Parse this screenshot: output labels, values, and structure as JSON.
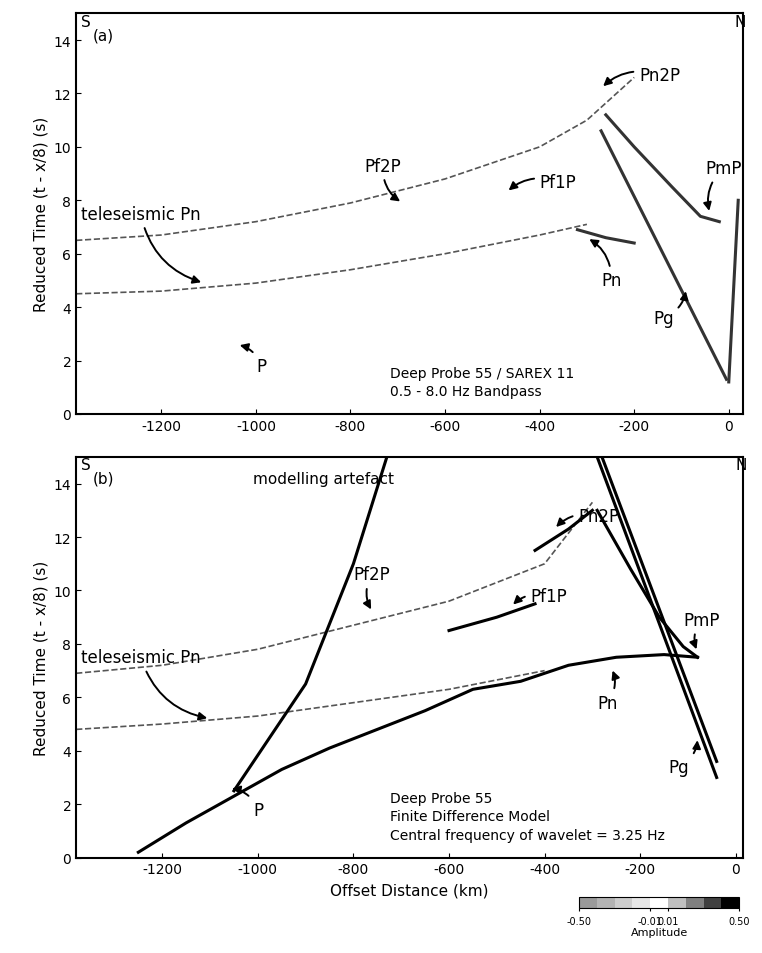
{
  "chart_data": [
    {
      "type": "line",
      "ylabel": "Reduced Time (t - x/8) (s)",
      "xlim": [
        -1380,
        30
      ],
      "ylim": [
        0,
        15
      ],
      "xticks": [
        -1200,
        -1000,
        -800,
        -600,
        -400,
        -200,
        0
      ],
      "yticks": [
        0,
        2,
        4,
        6,
        8,
        10,
        12,
        14
      ],
      "series": [
        {
          "color": "#555555",
          "line_style": "dashed",
          "x": [
            -1380,
            -1200,
            -1000,
            -800,
            -600,
            -400,
            -300
          ],
          "values": [
            4.5,
            4.6,
            4.9,
            5.4,
            6.0,
            6.7,
            7.1
          ]
        },
        {
          "color": "#555555",
          "line_style": "dashed",
          "x": [
            -1380,
            -1200,
            -1000,
            -800,
            -600,
            -400,
            -300,
            -200
          ],
          "values": [
            6.5,
            6.7,
            7.2,
            7.9,
            8.8,
            10.0,
            11.0,
            12.6
          ]
        },
        {
          "color": "#333333",
          "line_style": "solid",
          "x": [
            -5,
            -270
          ],
          "values": [
            1.3,
            10.6
          ]
        },
        {
          "color": "#333333",
          "line_style": "solid",
          "x": [
            0,
            20
          ],
          "values": [
            1.2,
            8.0
          ]
        },
        {
          "color": "#333333",
          "line_style": "solid",
          "x": [
            -20,
            -60,
            -120,
            -200,
            -260
          ],
          "values": [
            7.2,
            7.4,
            8.5,
            10.0,
            11.2
          ]
        },
        {
          "color": "#333333",
          "line_style": "solid",
          "x": [
            -320,
            -260,
            -200
          ],
          "values": [
            6.9,
            6.6,
            6.4
          ]
        }
      ],
      "annotations": [
        {
          "text": "(a)",
          "xy": [
            -1345,
            14.2
          ]
        },
        {
          "text": "S",
          "xy": [
            -1370,
            14.7
          ]
        },
        {
          "text": "N",
          "xy": [
            12,
            14.7
          ]
        },
        {
          "text": "Pn2P",
          "xy": [
            -270,
            12.2
          ],
          "xytext": [
            -190,
            12.7
          ]
        },
        {
          "text": "Pf2P",
          "xy": [
            -690,
            7.9
          ],
          "xytext": [
            -770,
            9.3
          ]
        },
        {
          "text": "Pf1P",
          "xy": [
            -470,
            8.3
          ],
          "xytext": [
            -400,
            8.7
          ]
        },
        {
          "text": "PmP",
          "xy": [
            -40,
            7.5
          ],
          "xytext": [
            -50,
            9.2
          ]
        },
        {
          "text": "Pn",
          "xy": [
            -300,
            6.6
          ],
          "xytext": [
            -270,
            5.0
          ]
        },
        {
          "text": "Pg",
          "xy": [
            -90,
            4.7
          ],
          "xytext": [
            -160,
            3.6
          ]
        },
        {
          "text": "teleseismic Pn",
          "xy": [
            -1110,
            4.9
          ],
          "xytext": [
            -1370,
            7.5
          ]
        },
        {
          "text": "P",
          "xy": [
            -1040,
            2.6
          ],
          "xytext": [
            -1000,
            1.8
          ]
        }
      ],
      "notes": [
        "Deep Probe 55 / SAREX 11",
        "0.5 - 8.0 Hz Bandpass"
      ]
    },
    {
      "type": "line",
      "ylabel": "Reduced Time (t - x/8) (s)",
      "xlabel": "Offset Distance (km)",
      "xlim": [
        -1380,
        15
      ],
      "ylim": [
        0,
        15
      ],
      "xticks": [
        -1200,
        -1000,
        -800,
        -600,
        -400,
        -200,
        0
      ],
      "yticks": [
        0,
        2,
        4,
        6,
        8,
        10,
        12,
        14
      ],
      "series": [
        {
          "color": "#555555",
          "line_style": "dashed",
          "x": [
            -1380,
            -1200,
            -1000,
            -800,
            -600,
            -400
          ],
          "values": [
            4.8,
            5.0,
            5.3,
            5.8,
            6.3,
            7.0
          ]
        },
        {
          "color": "#555555",
          "line_style": "dashed",
          "x": [
            -1380,
            -1200,
            -1000,
            -800,
            -600,
            -400,
            -300
          ],
          "values": [
            6.9,
            7.2,
            7.8,
            8.7,
            9.6,
            11.0,
            13.3
          ]
        },
        {
          "color": "#000000",
          "line_style": "solid",
          "x": [
            -1250,
            -1150,
            -1050,
            -950,
            -850,
            -750,
            -650,
            -550,
            -450,
            -350,
            -250,
            -150,
            -80
          ],
          "values": [
            0.2,
            1.3,
            2.3,
            3.3,
            4.1,
            4.8,
            5.5,
            6.3,
            6.6,
            7.2,
            7.5,
            7.6,
            7.5
          ]
        },
        {
          "color": "#000000",
          "line_style": "solid",
          "x": [
            -1050,
            -900,
            -800,
            -730
          ],
          "values": [
            2.5,
            6.5,
            11.0,
            15.0
          ]
        },
        {
          "color": "#000000",
          "line_style": "solid",
          "x": [
            -40,
            -290
          ],
          "values": [
            3.0,
            15.0
          ]
        },
        {
          "color": "#000000",
          "line_style": "solid",
          "x": [
            -40,
            -280
          ],
          "values": [
            3.6,
            15.0
          ]
        },
        {
          "color": "#000000",
          "line_style": "solid",
          "x": [
            -80,
            -110,
            -160,
            -220,
            -290
          ],
          "values": [
            7.5,
            7.9,
            9.0,
            10.8,
            13.0
          ]
        },
        {
          "color": "#000000",
          "line_style": "solid",
          "x": [
            -600,
            -500,
            -420
          ],
          "values": [
            8.5,
            9.0,
            9.5
          ]
        },
        {
          "color": "#000000",
          "line_style": "solid",
          "x": [
            -420,
            -350,
            -300
          ],
          "values": [
            11.5,
            12.3,
            13.0
          ]
        }
      ],
      "annotations": [
        {
          "text": "(b)",
          "xy": [
            -1345,
            14.2
          ]
        },
        {
          "text": "S",
          "xy": [
            -1370,
            14.7
          ]
        },
        {
          "text": "N",
          "xy": [
            0,
            14.7
          ]
        },
        {
          "text": "modelling artefact",
          "xy": [
            -1010,
            14.2
          ]
        },
        {
          "text": "Pn2P",
          "xy": [
            -380,
            12.3
          ],
          "xytext": [
            -330,
            12.8
          ]
        },
        {
          "text": "Pf2P",
          "xy": [
            -760,
            9.2
          ],
          "xytext": [
            -800,
            10.6
          ]
        },
        {
          "text": "Pf1P",
          "xy": [
            -470,
            9.4
          ],
          "xytext": [
            -430,
            9.8
          ]
        },
        {
          "text": "PmP",
          "xy": [
            -80,
            7.7
          ],
          "xytext": [
            -110,
            8.9
          ]
        },
        {
          "text": "Pn",
          "xy": [
            -260,
            7.1
          ],
          "xytext": [
            -290,
            5.8
          ]
        },
        {
          "text": "Pg",
          "xy": [
            -80,
            4.5
          ],
          "xytext": [
            -140,
            3.4
          ]
        },
        {
          "text": "teleseismic Pn",
          "xy": [
            -1100,
            5.2
          ],
          "xytext": [
            -1370,
            7.5
          ]
        },
        {
          "text": "P",
          "xy": [
            -1060,
            2.6
          ],
          "xytext": [
            -1010,
            1.8
          ]
        }
      ],
      "notes": [
        "Deep Probe 55",
        "Finite Difference Model",
        "Central frequency of wavelet = 3.25 Hz"
      ],
      "colorbar": {
        "label": "Amplitude",
        "boundaries": [
          -0.5,
          -0.2,
          -0.1,
          -0.05,
          -0.01,
          0.01,
          0.05,
          0.1,
          0.2,
          0.5
        ],
        "ticks": [
          {
            "value": -0.5,
            "label": "-0.50"
          },
          {
            "value": -0.01,
            "label": "-0.01"
          },
          {
            "value": 0.01,
            "label": "0.01"
          },
          {
            "value": 0.5,
            "label": "0.50"
          }
        ]
      }
    }
  ]
}
